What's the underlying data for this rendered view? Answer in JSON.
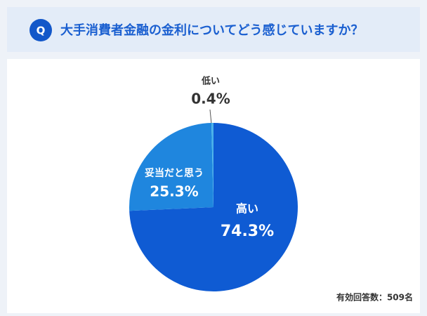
{
  "chart_data": {
    "type": "pie",
    "question_marker": "Q",
    "title": "大手消費者金融の金利についてどう感じていますか？",
    "categories": [
      "高い",
      "妥当だと思う",
      "低い"
    ],
    "values": [
      74.3,
      25.3,
      0.4
    ],
    "value_labels": [
      "74.3%",
      "25.3%",
      "0.4%"
    ],
    "colors": [
      "#0f5bd3",
      "#1f86de",
      "#49b2ea"
    ],
    "note": "有効回答数：509名"
  }
}
